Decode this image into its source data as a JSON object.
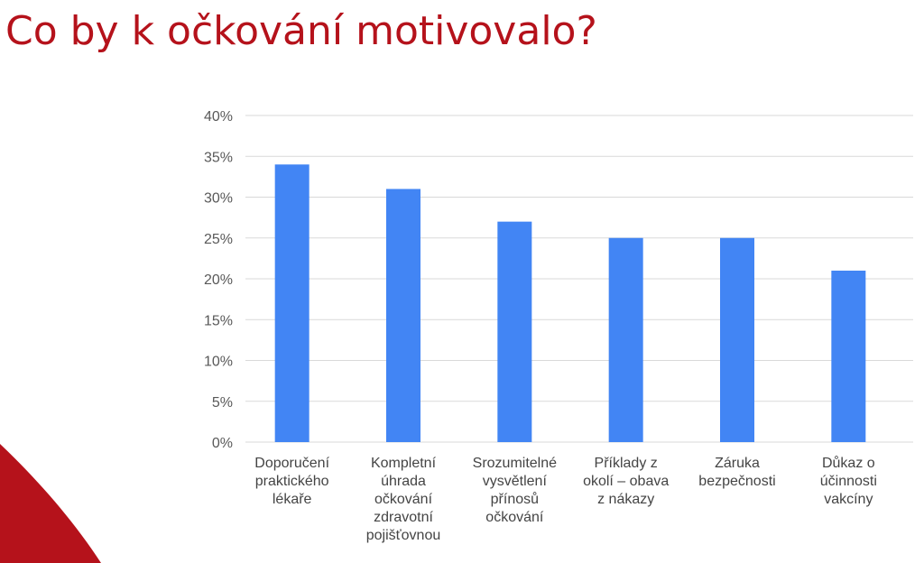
{
  "page": {
    "title": "Co by k očkování motivovalo?",
    "accent_color": "#b5121b"
  },
  "chart_data": {
    "type": "bar",
    "title": "",
    "xlabel": "",
    "ylabel": "",
    "categories": [
      [
        "Doporučení",
        "praktického",
        "lékaře"
      ],
      [
        "Kompletní",
        "úhrada",
        "očkování",
        "zdravotní",
        "pojišťovnou"
      ],
      [
        "Srozumitelné",
        "vysvětlení",
        "přínosů",
        "očkování"
      ],
      [
        "Příklady z",
        "okolí – obava",
        "z nákazy"
      ],
      [
        "Záruka",
        "bezpečnosti"
      ],
      [
        "Důkaz o",
        "účinnosti",
        "vakcíny"
      ]
    ],
    "values": [
      34,
      31,
      27,
      25,
      25,
      21
    ],
    "ylim": [
      0,
      40
    ],
    "yticks": [
      "0%",
      "5%",
      "10%",
      "15%",
      "20%",
      "25%",
      "30%",
      "35%",
      "40%"
    ],
    "grid": true,
    "legend": "none",
    "bar_color": "#4285f4",
    "grid_color": "#d9d9d9"
  }
}
